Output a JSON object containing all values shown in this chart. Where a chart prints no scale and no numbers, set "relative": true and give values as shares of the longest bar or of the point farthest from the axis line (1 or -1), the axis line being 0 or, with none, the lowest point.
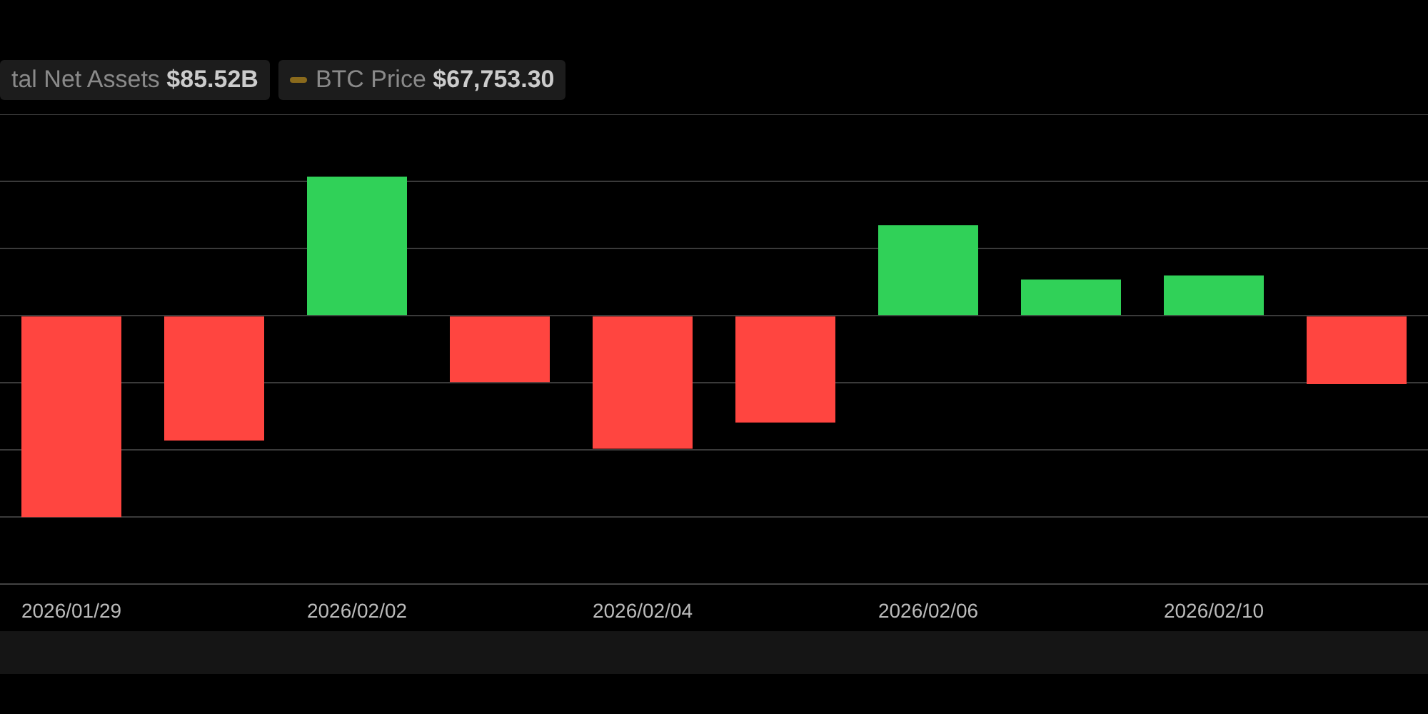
{
  "chart_data": {
    "type": "bar",
    "relative": true,
    "categories": [
      "2026/01/29",
      null,
      "2026/02/02",
      null,
      "2026/02/04",
      null,
      "2026/02/06",
      null,
      "2026/02/10",
      null
    ],
    "values": [
      -1,
      -0.62,
      0.69,
      -0.33,
      -0.66,
      -0.53,
      0.45,
      0.18,
      0.2,
      -0.34
    ],
    "colors": [
      "#ff4540",
      "#ff4540",
      "#30d158",
      "#ff4540",
      "#ff4540",
      "#ff4540",
      "#30d158",
      "#30d158",
      "#30d158",
      "#ff4540"
    ],
    "annotations": [
      "tal Net Assets $85.52B",
      "BTC Price $67,753.30"
    ],
    "grid": "y",
    "legend": false
  }
}
